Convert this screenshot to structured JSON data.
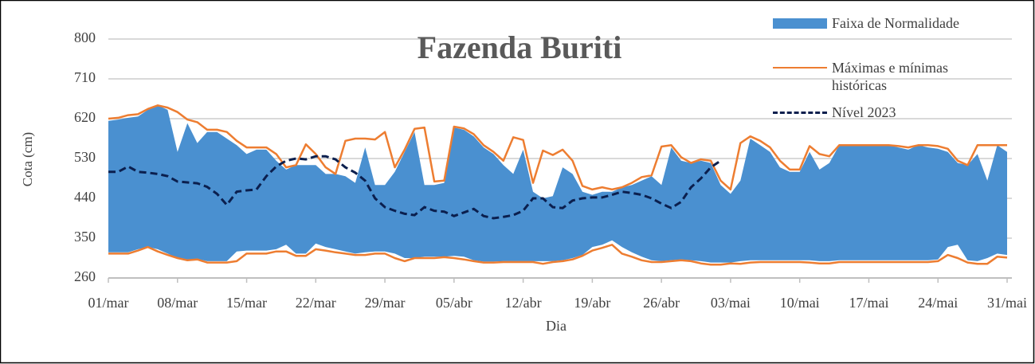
{
  "chart_data": {
    "type": "band-line",
    "title": "Fazenda Buriti",
    "x_label": "Dia",
    "y_label": "Cota (cm)",
    "categories": [
      "01/mar",
      null,
      null,
      null,
      null,
      null,
      null,
      "08/mar",
      null,
      null,
      null,
      null,
      null,
      null,
      "15/mar",
      null,
      null,
      null,
      null,
      null,
      null,
      "22/mar",
      null,
      null,
      null,
      null,
      null,
      null,
      "29/mar",
      null,
      null,
      null,
      null,
      null,
      null,
      "05/abr",
      null,
      null,
      null,
      null,
      null,
      null,
      "12/abr",
      null,
      null,
      null,
      null,
      null,
      null,
      "19/abr",
      null,
      null,
      null,
      null,
      null,
      null,
      "26/abr",
      null,
      null,
      null,
      null,
      null,
      null,
      "03/mai",
      null,
      null,
      null,
      null,
      null,
      null,
      "10/mai",
      null,
      null,
      null,
      null,
      null,
      null,
      "17/mai",
      null,
      null,
      null,
      null,
      null,
      null,
      "24/mai",
      null,
      null,
      null,
      null,
      null,
      null,
      "31/mai"
    ],
    "ylim": [
      260,
      800
    ],
    "yticks": [
      260,
      350,
      440,
      530,
      620,
      710,
      800
    ],
    "grid": true,
    "series": [
      {
        "name": "Faixa de Normalidade",
        "kind": "band",
        "color": "#4a90d0",
        "upper": [
          615,
          618,
          622,
          625,
          640,
          650,
          640,
          545,
          610,
          565,
          590,
          590,
          575,
          560,
          540,
          550,
          550,
          525,
          505,
          515,
          515,
          515,
          495,
          495,
          490,
          475,
          555,
          470,
          470,
          500,
          545,
          590,
          470,
          470,
          475,
          600,
          595,
          580,
          555,
          540,
          515,
          495,
          550,
          455,
          440,
          445,
          510,
          495,
          455,
          448,
          455,
          455,
          465,
          470,
          480,
          490,
          470,
          555,
          525,
          520,
          525,
          520,
          470,
          450,
          480,
          575,
          560,
          545,
          510,
          500,
          500,
          545,
          505,
          520,
          560,
          560,
          560,
          560,
          560,
          560,
          555,
          550,
          560,
          555,
          552,
          545,
          520,
          515,
          540,
          480,
          560,
          545
        ],
        "lower": [
          318,
          318,
          318,
          325,
          330,
          325,
          315,
          305,
          300,
          303,
          298,
          298,
          298,
          320,
          322,
          322,
          322,
          325,
          335,
          315,
          315,
          338,
          330,
          325,
          320,
          315,
          318,
          320,
          320,
          315,
          305,
          305,
          308,
          308,
          308,
          310,
          308,
          300,
          297,
          297,
          298,
          298,
          298,
          298,
          298,
          298,
          300,
          305,
          312,
          330,
          335,
          345,
          330,
          318,
          308,
          300,
          298,
          300,
          302,
          300,
          298,
          295,
          295,
          295,
          298,
          300,
          300,
          300,
          300,
          300,
          300,
          300,
          298,
          298,
          300,
          300,
          300,
          300,
          300,
          300,
          300,
          300,
          300,
          300,
          302,
          330,
          335,
          300,
          298,
          305,
          315,
          312
        ]
      },
      {
        "name": "Máximas e mínimas históricas",
        "kind": "minmax",
        "color": "#ed7d31",
        "max": [
          620,
          622,
          628,
          630,
          642,
          650,
          645,
          635,
          618,
          612,
          595,
          595,
          590,
          570,
          555,
          555,
          555,
          540,
          510,
          515,
          562,
          540,
          510,
          495,
          570,
          575,
          575,
          573,
          590,
          510,
          550,
          597,
          600,
          478,
          480,
          602,
          598,
          585,
          560,
          545,
          525,
          578,
          572,
          475,
          548,
          538,
          550,
          525,
          468,
          460,
          465,
          460,
          465,
          475,
          488,
          492,
          557,
          560,
          533,
          520,
          528,
          525,
          480,
          460,
          565,
          580,
          570,
          555,
          525,
          505,
          505,
          558,
          540,
          535,
          560,
          560,
          560,
          560,
          560,
          560,
          558,
          555,
          560,
          560,
          558,
          552,
          525,
          515,
          560,
          560,
          560,
          560
        ],
        "min": [
          315,
          315,
          315,
          322,
          330,
          320,
          312,
          305,
          300,
          302,
          295,
          295,
          295,
          298,
          315,
          315,
          315,
          320,
          320,
          310,
          310,
          325,
          322,
          318,
          315,
          312,
          312,
          315,
          315,
          305,
          298,
          305,
          305,
          305,
          307,
          305,
          302,
          298,
          295,
          295,
          296,
          296,
          296,
          296,
          292,
          296,
          298,
          302,
          310,
          322,
          328,
          335,
          315,
          308,
          300,
          296,
          296,
          298,
          300,
          298,
          293,
          290,
          290,
          293,
          292,
          295,
          296,
          296,
          296,
          296,
          296,
          295,
          293,
          293,
          296,
          296,
          296,
          296,
          296,
          296,
          296,
          296,
          296,
          296,
          298,
          312,
          305,
          295,
          292,
          292,
          308,
          306
        ]
      },
      {
        "name": "Nível 2023",
        "kind": "line",
        "color": "#0b1f4e",
        "dashed": true,
        "values": [
          500,
          500,
          512,
          500,
          498,
          495,
          490,
          478,
          476,
          474,
          466,
          450,
          425,
          455,
          458,
          460,
          490,
          512,
          525,
          530,
          528,
          535,
          535,
          528,
          510,
          498,
          480,
          440,
          420,
          412,
          405,
          402,
          420,
          412,
          410,
          400,
          408,
          416,
          400,
          395,
          398,
          402,
          412,
          440,
          440,
          420,
          418,
          435,
          440,
          442,
          442,
          448,
          455,
          452,
          448,
          440,
          428,
          418,
          432,
          465,
          485,
          510,
          525,
          null,
          null,
          null,
          null,
          null,
          null,
          null,
          null,
          null,
          null,
          null,
          null,
          null,
          null,
          null,
          null,
          null,
          null,
          null,
          null,
          null,
          null,
          null,
          null,
          null,
          null,
          null,
          null,
          null
        ]
      }
    ]
  }
}
